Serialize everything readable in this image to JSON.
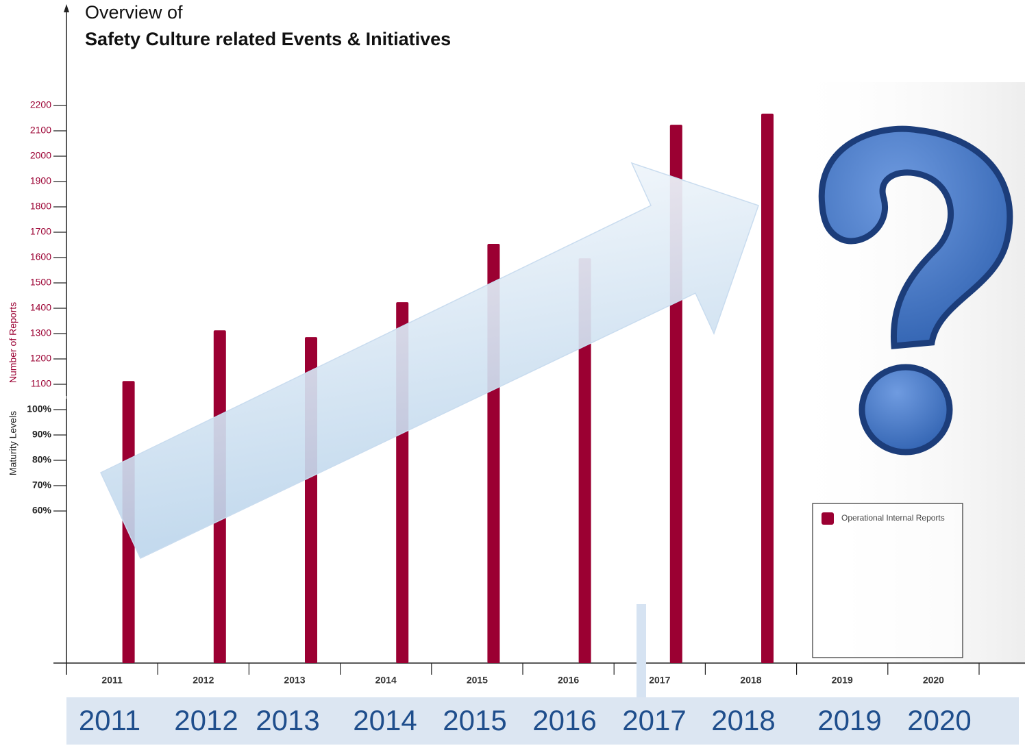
{
  "chart_data": {
    "type": "bar",
    "title": [
      "Overview of",
      "Safety Culture related Events & Initiatives"
    ],
    "ylabel": "Number of Reports",
    "y2label": "Maturity Levels",
    "categories": [
      "2011",
      "2012",
      "2013",
      "2014",
      "2015",
      "2016",
      "2017",
      "2018",
      "2019",
      "2020"
    ],
    "series": [
      {
        "name": "Operational Internal Reports",
        "color": "#9b0032",
        "values": [
          1113,
          1313,
          1286,
          1424,
          1654,
          1597,
          2124,
          2168,
          null,
          null
        ]
      }
    ],
    "ylim": [
      0,
      2600
    ],
    "yticks": [
      1100,
      1200,
      1300,
      1400,
      1500,
      1600,
      1700,
      1800,
      1900,
      2000,
      2100,
      2200
    ],
    "y2lim": [
      0,
      260
    ],
    "y2ticks": [
      {
        "value": 60,
        "label": "60%"
      },
      {
        "value": 70,
        "label": "70%"
      },
      {
        "value": 80,
        "label": "80%"
      },
      {
        "value": 90,
        "label": "90%"
      },
      {
        "value": 100,
        "label": "100%"
      }
    ],
    "grid": false,
    "legend": "lower right",
    "timeline": [
      "2011",
      "2012",
      "2013",
      "2014",
      "2015",
      "2016",
      "2017",
      "2018",
      "2019",
      "2020"
    ]
  }
}
